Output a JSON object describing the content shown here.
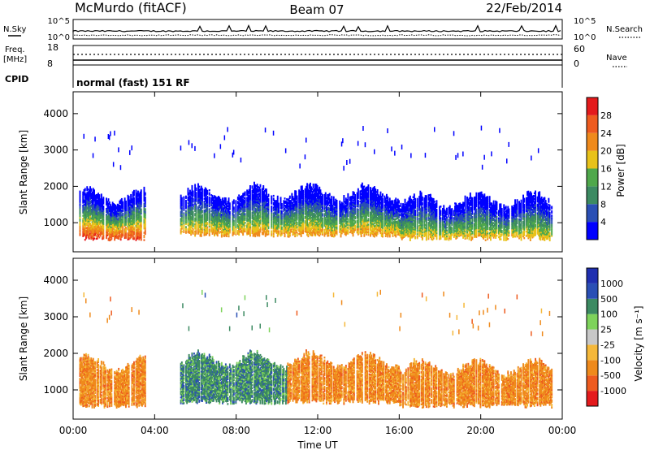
{
  "header": {
    "station": "McMurdo (fitACF)",
    "beam": "Beam 07",
    "date": "22/Feb/2014",
    "mode": "normal (fast) 151 RF"
  },
  "top_panels": {
    "left_labels": {
      "nsky": "N.Sky",
      "freq": "Freq.",
      "freq_unit": "[MHz]",
      "cpid": "CPID"
    },
    "right_labels": {
      "nsearch": "N.Search",
      "nave": "Nave"
    },
    "nsky_ticks": [
      "10^5",
      "10^0"
    ],
    "nsearch_ticks": [
      "10^5",
      "10^0"
    ],
    "freq_ticks": [
      "18",
      "8"
    ],
    "nave_ticks": [
      "60",
      "0"
    ]
  },
  "x_axis": {
    "label": "Time UT",
    "ticks": [
      "00:00",
      "04:00",
      "08:00",
      "12:00",
      "16:00",
      "20:00",
      "00:00"
    ]
  },
  "colors": {
    "power": [
      "#0000ff",
      "#2a4fb5",
      "#3c8a62",
      "#4fa84b",
      "#e8c21a",
      "#ef8a1c",
      "#ee5b1f",
      "#e41a1c"
    ],
    "velocity": [
      "#e41a1c",
      "#ee5b1f",
      "#ef8a1c",
      "#f5b83a",
      "#c8c8c8",
      "#7ed35b",
      "#3c8a62",
      "#2a4fb5",
      "#1f2fb0"
    ]
  },
  "chart_data": [
    {
      "type": "heatmap",
      "name": "power",
      "ylabel": "Slant Range [km]",
      "xlabel": "Time UT",
      "yticks": [
        "1000",
        "2000",
        "3000",
        "4000"
      ],
      "ylim": [
        200,
        4600
      ],
      "xlim": [
        0,
        24
      ],
      "colorbar": {
        "label": "Power [dB]",
        "ticks": [
          "4",
          "8",
          "12",
          "16",
          "20",
          "24",
          "28"
        ],
        "range": [
          0,
          32
        ]
      },
      "echo_bands": [
        {
          "t_start": 0.3,
          "t_end": 3.5,
          "r_low": 500,
          "r_high": 1600,
          "peak_db": 30
        },
        {
          "t_start": 5.2,
          "t_end": 16.0,
          "r_low": 600,
          "r_high": 1700,
          "peak_db": 24
        },
        {
          "t_start": 16.0,
          "t_end": 23.5,
          "r_low": 500,
          "r_high": 1500,
          "peak_db": 22
        }
      ]
    },
    {
      "type": "heatmap",
      "name": "velocity",
      "ylabel": "Slant Range [km]",
      "xlabel": "Time UT",
      "yticks": [
        "1000",
        "2000",
        "3000",
        "4000"
      ],
      "ylim": [
        200,
        4600
      ],
      "xlim": [
        0,
        24
      ],
      "colorbar": {
        "label": "Velocity [m s⁻¹]",
        "ticks": [
          "1000",
          "500",
          "100",
          "25",
          "-25",
          "-100",
          "-500",
          "-1000"
        ]
      },
      "echo_bands": [
        {
          "t_start": 0.3,
          "t_end": 3.5,
          "dominant_velocity": "-100"
        },
        {
          "t_start": 5.2,
          "t_end": 10.5,
          "dominant_velocity": "100"
        },
        {
          "t_start": 10.5,
          "t_end": 23.5,
          "dominant_velocity": "-100"
        }
      ]
    }
  ]
}
